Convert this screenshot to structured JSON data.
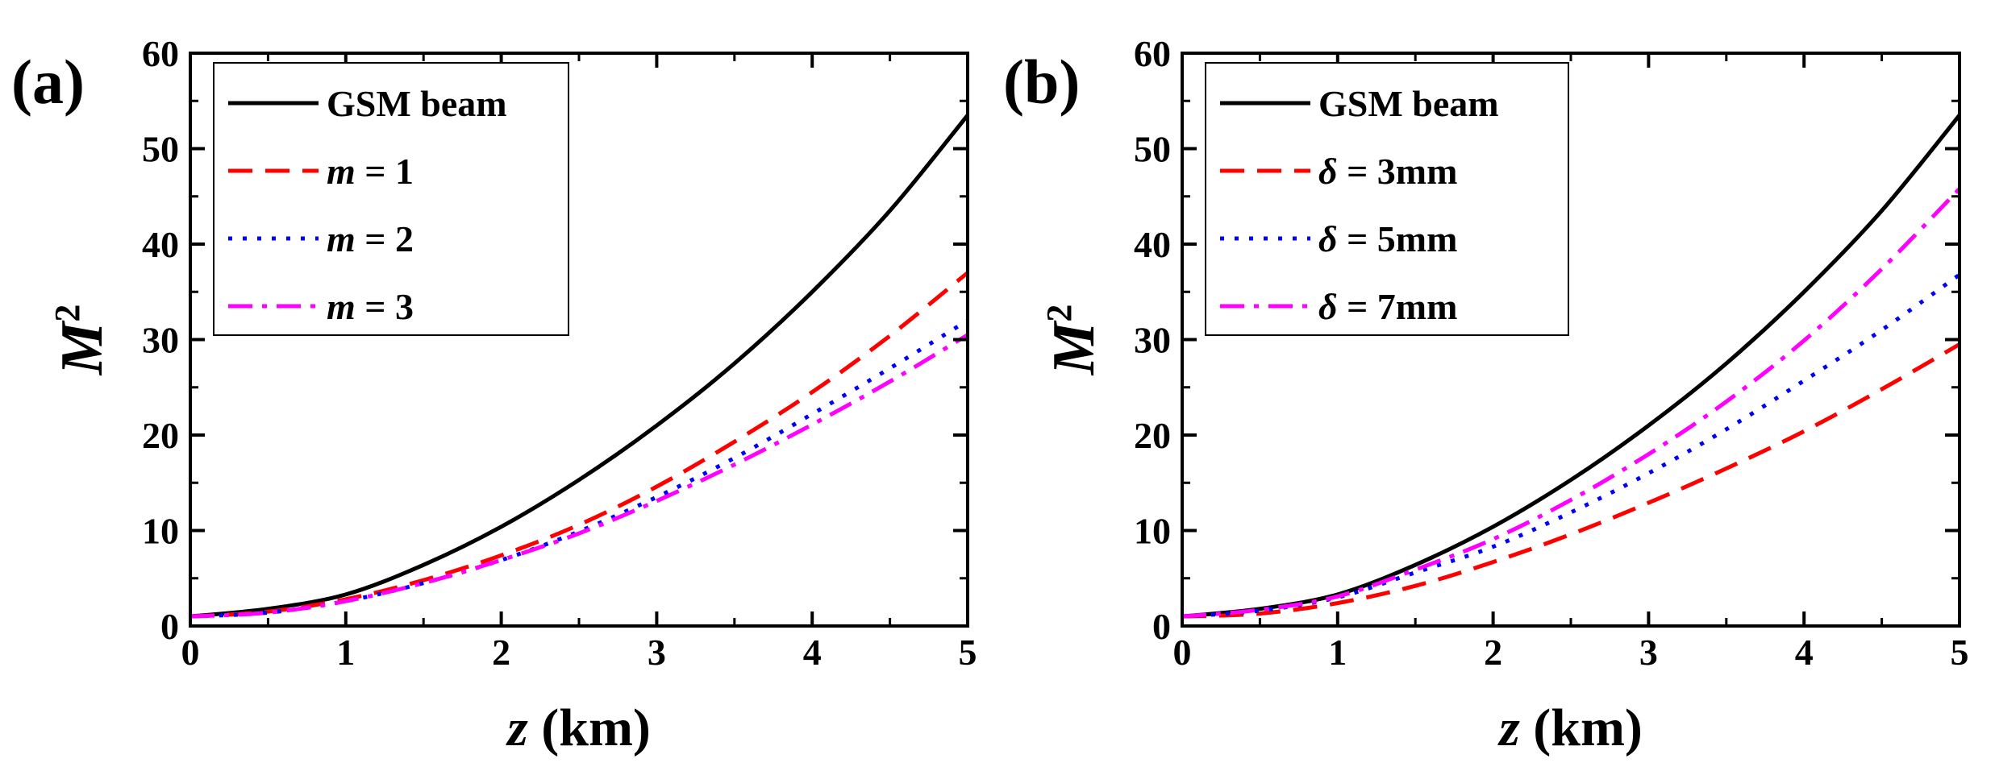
{
  "chart_data": [
    {
      "type": "line",
      "panel_label": "(a)",
      "xlabel": "z (km)",
      "ylabel": "M²",
      "xlim": [
        0,
        5
      ],
      "ylim": [
        0,
        60
      ],
      "xticks": [
        0,
        1,
        2,
        3,
        4,
        5
      ],
      "yticks": [
        0,
        10,
        20,
        30,
        40,
        50,
        60
      ],
      "legend_position": "top-left",
      "x": [
        0,
        0.5,
        1,
        1.5,
        2,
        2.5,
        3,
        3.5,
        4,
        4.5,
        5
      ],
      "series": [
        {
          "name": "GSM beam",
          "name_parts": [
            {
              "text": "GSM beam",
              "italic": false
            }
          ],
          "color": "#000000",
          "dash": "solid",
          "values": [
            1.0,
            1.8,
            3.3,
            6.4,
            10.4,
            15.3,
            21.0,
            27.5,
            35.0,
            43.5,
            53.5
          ]
        },
        {
          "name": "m = 1",
          "name_parts": [
            {
              "text": "m",
              "italic": true
            },
            {
              "text": " = 1",
              "italic": false
            }
          ],
          "color": "#ff0000",
          "dash": "dashed",
          "values": [
            1.0,
            1.5,
            2.8,
            4.8,
            7.4,
            10.6,
            14.6,
            19.3,
            24.5,
            30.4,
            37.0
          ]
        },
        {
          "name": "m = 2",
          "name_parts": [
            {
              "text": "m",
              "italic": true
            },
            {
              "text": " = 2",
              "italic": false
            }
          ],
          "color": "#0000ff",
          "dash": "dotted",
          "values": [
            1.0,
            1.4,
            2.6,
            4.5,
            6.9,
            9.9,
            13.5,
            17.6,
            22.2,
            27.0,
            32.0
          ]
        },
        {
          "name": "m = 3",
          "name_parts": [
            {
              "text": "m",
              "italic": true
            },
            {
              "text": " = 3",
              "italic": false
            }
          ],
          "color": "#ff00ff",
          "dash": "dashdot",
          "values": [
            1.0,
            1.4,
            2.6,
            4.5,
            6.9,
            9.7,
            13.1,
            16.9,
            21.1,
            25.6,
            30.5
          ]
        }
      ]
    },
    {
      "type": "line",
      "panel_label": "(b)",
      "xlabel": "z (km)",
      "ylabel": "M²",
      "xlim": [
        0,
        5
      ],
      "ylim": [
        0,
        60
      ],
      "xticks": [
        0,
        1,
        2,
        3,
        4,
        5
      ],
      "yticks": [
        0,
        10,
        20,
        30,
        40,
        50,
        60
      ],
      "legend_position": "top-left",
      "x": [
        0,
        0.5,
        1,
        1.5,
        2,
        2.5,
        3,
        3.5,
        4,
        4.5,
        5
      ],
      "series": [
        {
          "name": "GSM beam",
          "name_parts": [
            {
              "text": "GSM beam",
              "italic": false
            }
          ],
          "color": "#000000",
          "dash": "solid",
          "values": [
            1.0,
            1.8,
            3.3,
            6.4,
            10.4,
            15.3,
            21.0,
            27.5,
            35.0,
            43.5,
            53.5
          ]
        },
        {
          "name": "δ = 3mm",
          "name_parts": [
            {
              "text": "δ",
              "italic": true
            },
            {
              "text": " = 3mm",
              "italic": false
            }
          ],
          "color": "#ff0000",
          "dash": "dashed",
          "values": [
            1.0,
            1.3,
            2.4,
            4.2,
            6.7,
            9.6,
            12.9,
            16.5,
            20.4,
            24.8,
            29.5
          ]
        },
        {
          "name": "δ = 5mm",
          "name_parts": [
            {
              "text": "δ",
              "italic": true
            },
            {
              "text": " = 5mm",
              "italic": false
            }
          ],
          "color": "#0000ff",
          "dash": "dotted",
          "values": [
            1.0,
            1.6,
            3.0,
            5.6,
            8.3,
            11.9,
            16.0,
            20.6,
            25.7,
            31.0,
            36.8
          ]
        },
        {
          "name": "δ = 7mm",
          "name_parts": [
            {
              "text": "δ",
              "italic": true
            },
            {
              "text": " = 7mm",
              "italic": false
            }
          ],
          "color": "#ff00ff",
          "dash": "dashdot",
          "values": [
            1.0,
            1.7,
            3.1,
            5.9,
            9.1,
            13.2,
            18.0,
            23.5,
            29.9,
            37.4,
            45.8
          ]
        }
      ]
    }
  ]
}
